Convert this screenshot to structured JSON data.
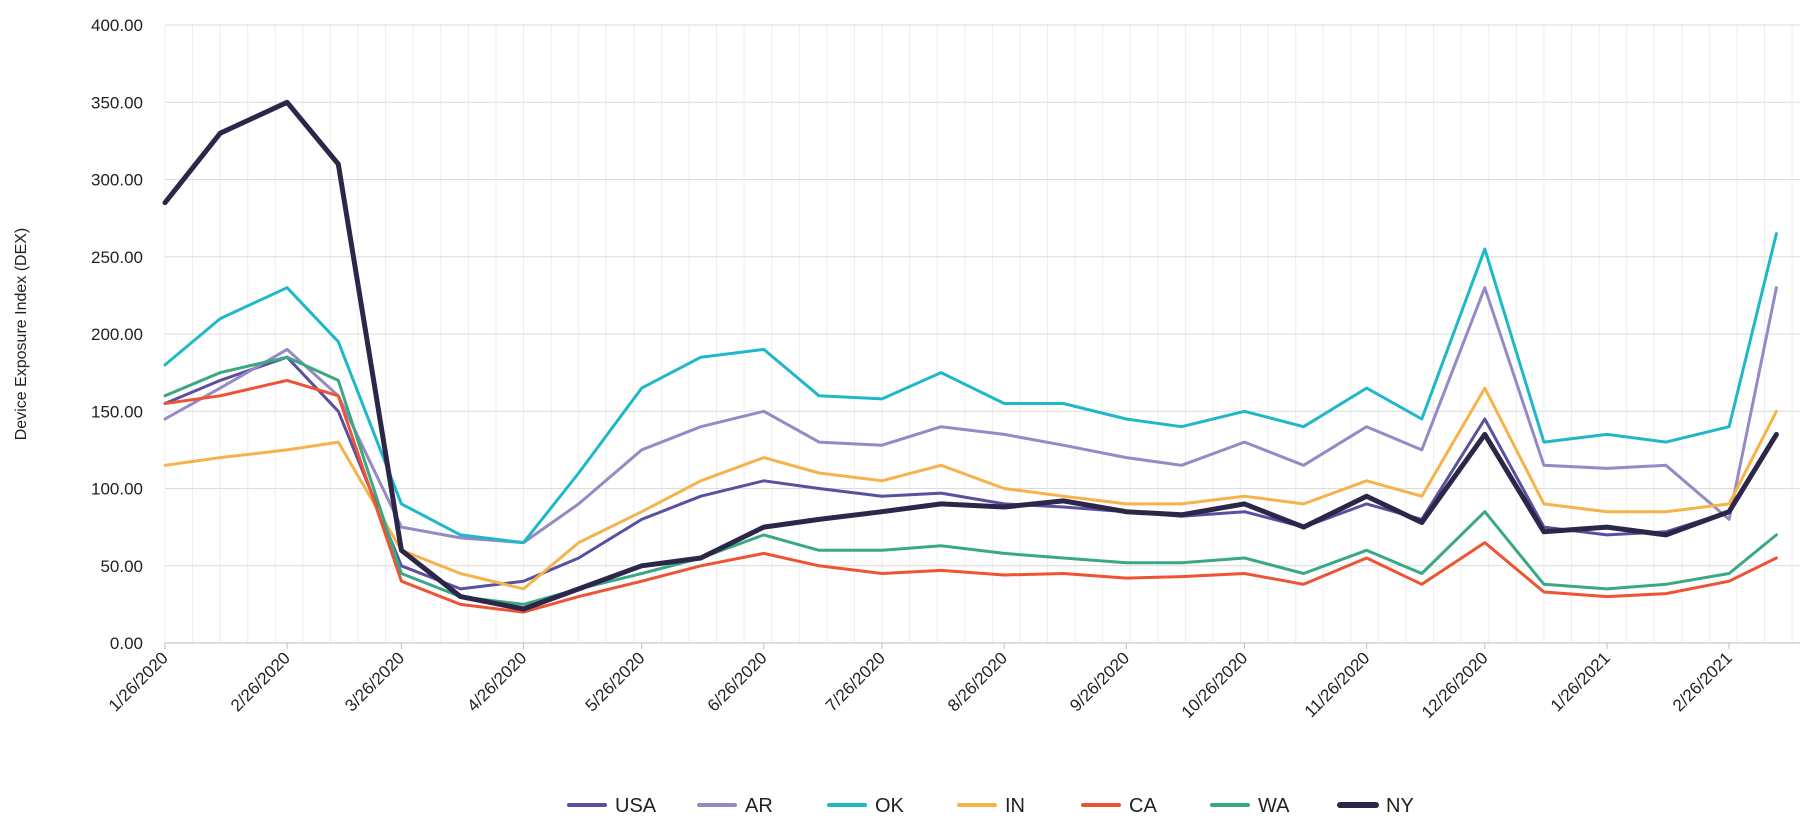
{
  "chart_data": {
    "type": "line",
    "title": "",
    "xlabel": "",
    "ylabel": "Device Exposure Index (DEX)",
    "ylim": [
      0,
      400
    ],
    "y_ticks": [
      "0.00",
      "50.00",
      "100.00",
      "150.00",
      "200.00",
      "250.00",
      "300.00",
      "350.00",
      "400.00"
    ],
    "x_tick_labels": [
      "1/26/2020",
      "2/26/2020",
      "3/26/2020",
      "4/26/2020",
      "5/26/2020",
      "6/26/2020",
      "7/26/2020",
      "8/26/2020",
      "9/26/2020",
      "10/26/2020",
      "11/26/2020",
      "12/26/2020",
      "1/26/2021",
      "2/26/2021"
    ],
    "x": [
      "1/26/2020",
      "2/9/2020",
      "2/26/2020",
      "3/10/2020",
      "3/26/2020",
      "4/10/2020",
      "4/26/2020",
      "5/10/2020",
      "5/26/2020",
      "6/10/2020",
      "6/26/2020",
      "7/10/2020",
      "7/26/2020",
      "8/10/2020",
      "8/26/2020",
      "9/10/2020",
      "9/26/2020",
      "10/10/2020",
      "10/26/2020",
      "11/10/2020",
      "11/26/2020",
      "12/10/2020",
      "12/26/2020",
      "1/10/2021",
      "1/26/2021",
      "2/10/2021",
      "2/26/2021",
      "3/10/2021"
    ],
    "grid": true,
    "legend_position": "bottom",
    "series": [
      {
        "name": "USA",
        "color": "#5b4fa0",
        "width": 3,
        "values": [
          155,
          170,
          185,
          150,
          50,
          35,
          40,
          55,
          80,
          95,
          105,
          100,
          95,
          97,
          90,
          88,
          85,
          82,
          85,
          75,
          90,
          80,
          145,
          75,
          70,
          72,
          85,
          135
        ]
      },
      {
        "name": "AR",
        "color": "#9589c6",
        "width": 3,
        "values": [
          145,
          165,
          190,
          160,
          75,
          68,
          65,
          90,
          125,
          140,
          150,
          130,
          128,
          140,
          135,
          128,
          120,
          115,
          130,
          115,
          140,
          125,
          230,
          115,
          113,
          115,
          80,
          230
        ]
      },
      {
        "name": "OK",
        "color": "#1fb8c9",
        "width": 3,
        "values": [
          180,
          210,
          230,
          195,
          90,
          70,
          65,
          110,
          165,
          185,
          190,
          160,
          158,
          175,
          155,
          155,
          145,
          140,
          150,
          140,
          165,
          145,
          255,
          130,
          135,
          130,
          140,
          265
        ]
      },
      {
        "name": "IN",
        "color": "#f7b24a",
        "width": 3,
        "values": [
          115,
          120,
          125,
          130,
          60,
          45,
          35,
          65,
          85,
          105,
          120,
          110,
          105,
          115,
          100,
          95,
          90,
          90,
          95,
          90,
          105,
          95,
          165,
          90,
          85,
          85,
          90,
          150
        ]
      },
      {
        "name": "CA",
        "color": "#ee5334",
        "width": 3,
        "values": [
          155,
          160,
          170,
          160,
          40,
          25,
          20,
          30,
          40,
          50,
          58,
          50,
          45,
          47,
          44,
          45,
          42,
          43,
          45,
          38,
          55,
          38,
          65,
          33,
          30,
          32,
          40,
          55
        ]
      },
      {
        "name": "WA",
        "color": "#3aa882",
        "width": 3,
        "values": [
          160,
          175,
          185,
          170,
          45,
          30,
          25,
          35,
          45,
          55,
          70,
          60,
          60,
          63,
          58,
          55,
          52,
          52,
          55,
          45,
          60,
          45,
          85,
          38,
          35,
          38,
          45,
          70
        ]
      },
      {
        "name": "NY",
        "color": "#2c2749",
        "width": 5,
        "values": [
          285,
          330,
          350,
          310,
          60,
          30,
          22,
          35,
          50,
          55,
          75,
          80,
          85,
          90,
          88,
          92,
          85,
          83,
          90,
          75,
          95,
          78,
          135,
          72,
          75,
          70,
          85,
          135
        ]
      }
    ]
  }
}
